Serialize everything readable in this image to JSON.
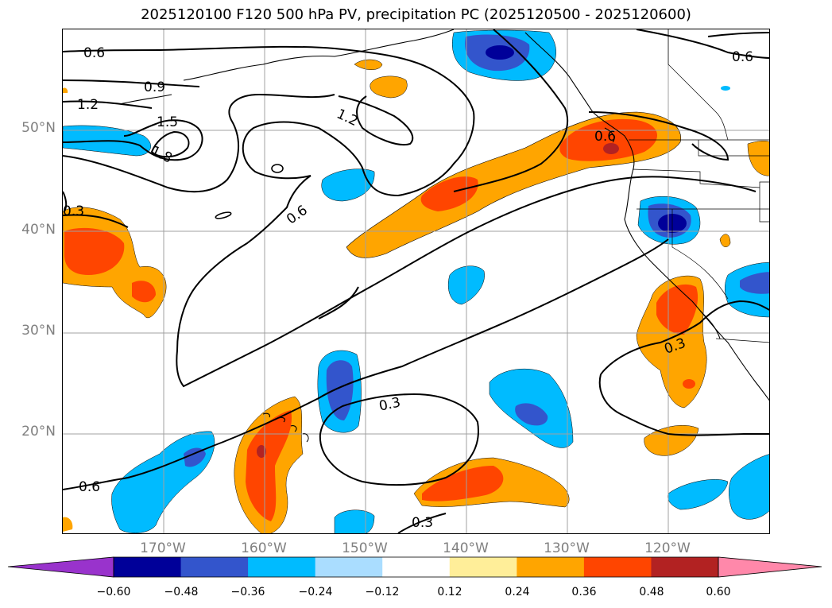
{
  "title": "2025120100 F120 500 hPa PV, precipitation PC (2025120500 - 2025120600)",
  "latitude_labels": [
    "50°N",
    "40°N",
    "30°N",
    "20°N"
  ],
  "longitude_labels": [
    "170°W",
    "160°W",
    "150°W",
    "140°W",
    "130°W",
    "120°W"
  ],
  "contour_labels": [
    "0.6",
    "0.9",
    "1.2",
    "1.5",
    "1.8",
    "1.2",
    "0.6",
    "0.3",
    "0.6",
    "0.3",
    "0.3",
    "0.6",
    "0.6"
  ],
  "colorbar": {
    "ticks": [
      "−0.60",
      "−0.48",
      "−0.36",
      "−0.24",
      "−0.12",
      "0.12",
      "0.24",
      "0.36",
      "0.48",
      "0.60"
    ],
    "colors": [
      "#9933cc",
      "#000099",
      "#3355cc",
      "#00bbff",
      "#aaddff",
      "#ffffff",
      "#ffee99",
      "#ffa500",
      "#ff4500",
      "#b22222",
      "#ff88aa"
    ]
  },
  "fill_colors": {
    "orange": "#ffa500",
    "red_orange": "#ff4500",
    "dark_red": "#b22222",
    "light_blue": "#00bbff",
    "mid_blue": "#3355cc",
    "dark_blue": "#000099"
  }
}
